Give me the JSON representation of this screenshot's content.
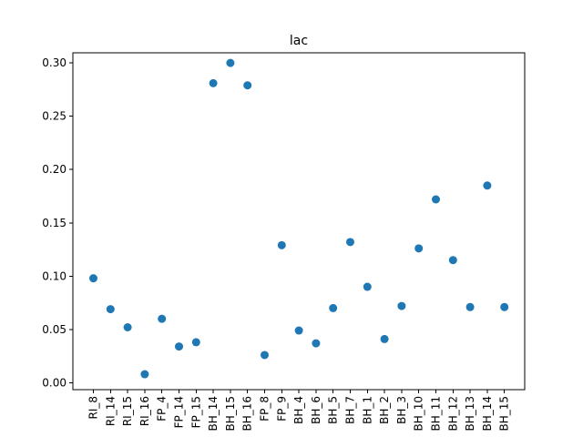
{
  "chart_data": {
    "type": "scatter",
    "title": "lac",
    "xlabel": "",
    "ylabel": "",
    "ylim": [
      -0.0065,
      0.3095
    ],
    "yticks": [
      0.0,
      0.05,
      0.1,
      0.15,
      0.2,
      0.25,
      0.3
    ],
    "ytick_labels": [
      "0.00",
      "0.05",
      "0.10",
      "0.15",
      "0.20",
      "0.25",
      "0.30"
    ],
    "grid": false,
    "marker_color": "#1f77b4",
    "categories": [
      "RI_8",
      "RI_14",
      "RI_15",
      "RI_16",
      "FP_4",
      "FP_14",
      "FP_15",
      "BH_14",
      "BH_15",
      "BH_16",
      "FP_8",
      "FP_9",
      "BH_4",
      "BH_6",
      "BH_5",
      "BH_7",
      "BH_1",
      "BH_2",
      "BH_3",
      "BH_10",
      "BH_11",
      "BH_12",
      "BH_13",
      "BH_14",
      "BH_15"
    ],
    "values": [
      0.098,
      0.069,
      0.052,
      0.008,
      0.06,
      0.034,
      0.038,
      0.281,
      0.3,
      0.279,
      0.026,
      0.129,
      0.049,
      0.037,
      0.07,
      0.132,
      0.09,
      0.041,
      0.072,
      0.126,
      0.172,
      0.115,
      0.071,
      0.185,
      0.071
    ]
  }
}
